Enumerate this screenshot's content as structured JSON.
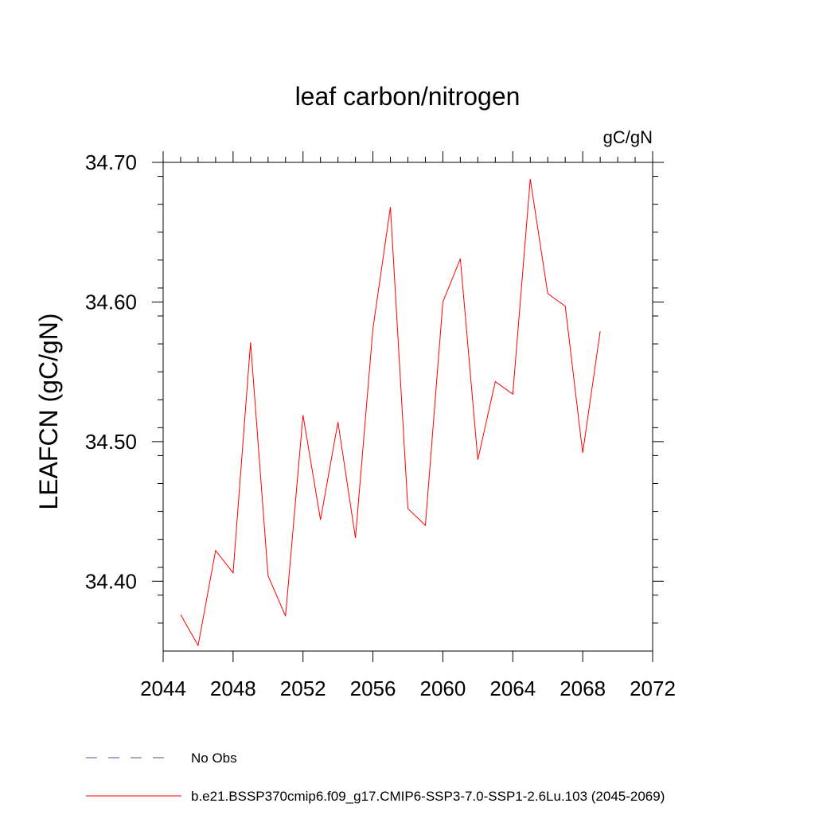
{
  "chart_data": {
    "type": "line",
    "title": "leaf carbon/nitrogen",
    "units_label": "gC/gN",
    "xlabel": "",
    "ylabel": "LEAFCN  (gC/gN)",
    "xlim": [
      2044,
      2072
    ],
    "ylim": [
      34.35,
      34.7
    ],
    "x_ticks": [
      2044,
      2048,
      2052,
      2056,
      2060,
      2064,
      2068,
      2072
    ],
    "x_tick_labels": [
      "2044",
      "2048",
      "2052",
      "2056",
      "2060",
      "2064",
      "2068",
      "2072"
    ],
    "y_ticks": [
      34.4,
      34.5,
      34.6,
      34.7
    ],
    "y_tick_labels": [
      "34.40",
      "34.50",
      "34.60",
      "34.70"
    ],
    "legend_position": "bottom",
    "series": [
      {
        "name": "b.e21.BSSP370cmip6.f09_g17.CMIP6-SSP3-7.0-SSP1-2.6Lu.103 (2045-2069)",
        "color": "#ff0000",
        "dash": "solid",
        "x": [
          2045,
          2046,
          2047,
          2048,
          2049,
          2050,
          2051,
          2052,
          2053,
          2054,
          2055,
          2056,
          2057,
          2058,
          2059,
          2060,
          2061,
          2062,
          2063,
          2064,
          2065,
          2066,
          2067,
          2068,
          2069
        ],
        "values": [
          34.376,
          34.354,
          34.422,
          34.406,
          34.571,
          34.404,
          34.375,
          34.519,
          34.444,
          34.514,
          34.431,
          34.581,
          34.668,
          34.452,
          34.44,
          34.6,
          34.631,
          34.487,
          34.543,
          34.534,
          34.688,
          34.606,
          34.597,
          34.492,
          34.579
        ]
      }
    ],
    "legend": [
      {
        "label": "No Obs",
        "color": "#5a4a9c",
        "dash": "dashed"
      },
      {
        "label": "b.e21.BSSP370cmip6.f09_g17.CMIP6-SSP3-7.0-SSP1-2.6Lu.103 (2045-2069)",
        "color": "#ff0000",
        "dash": "solid"
      }
    ]
  }
}
